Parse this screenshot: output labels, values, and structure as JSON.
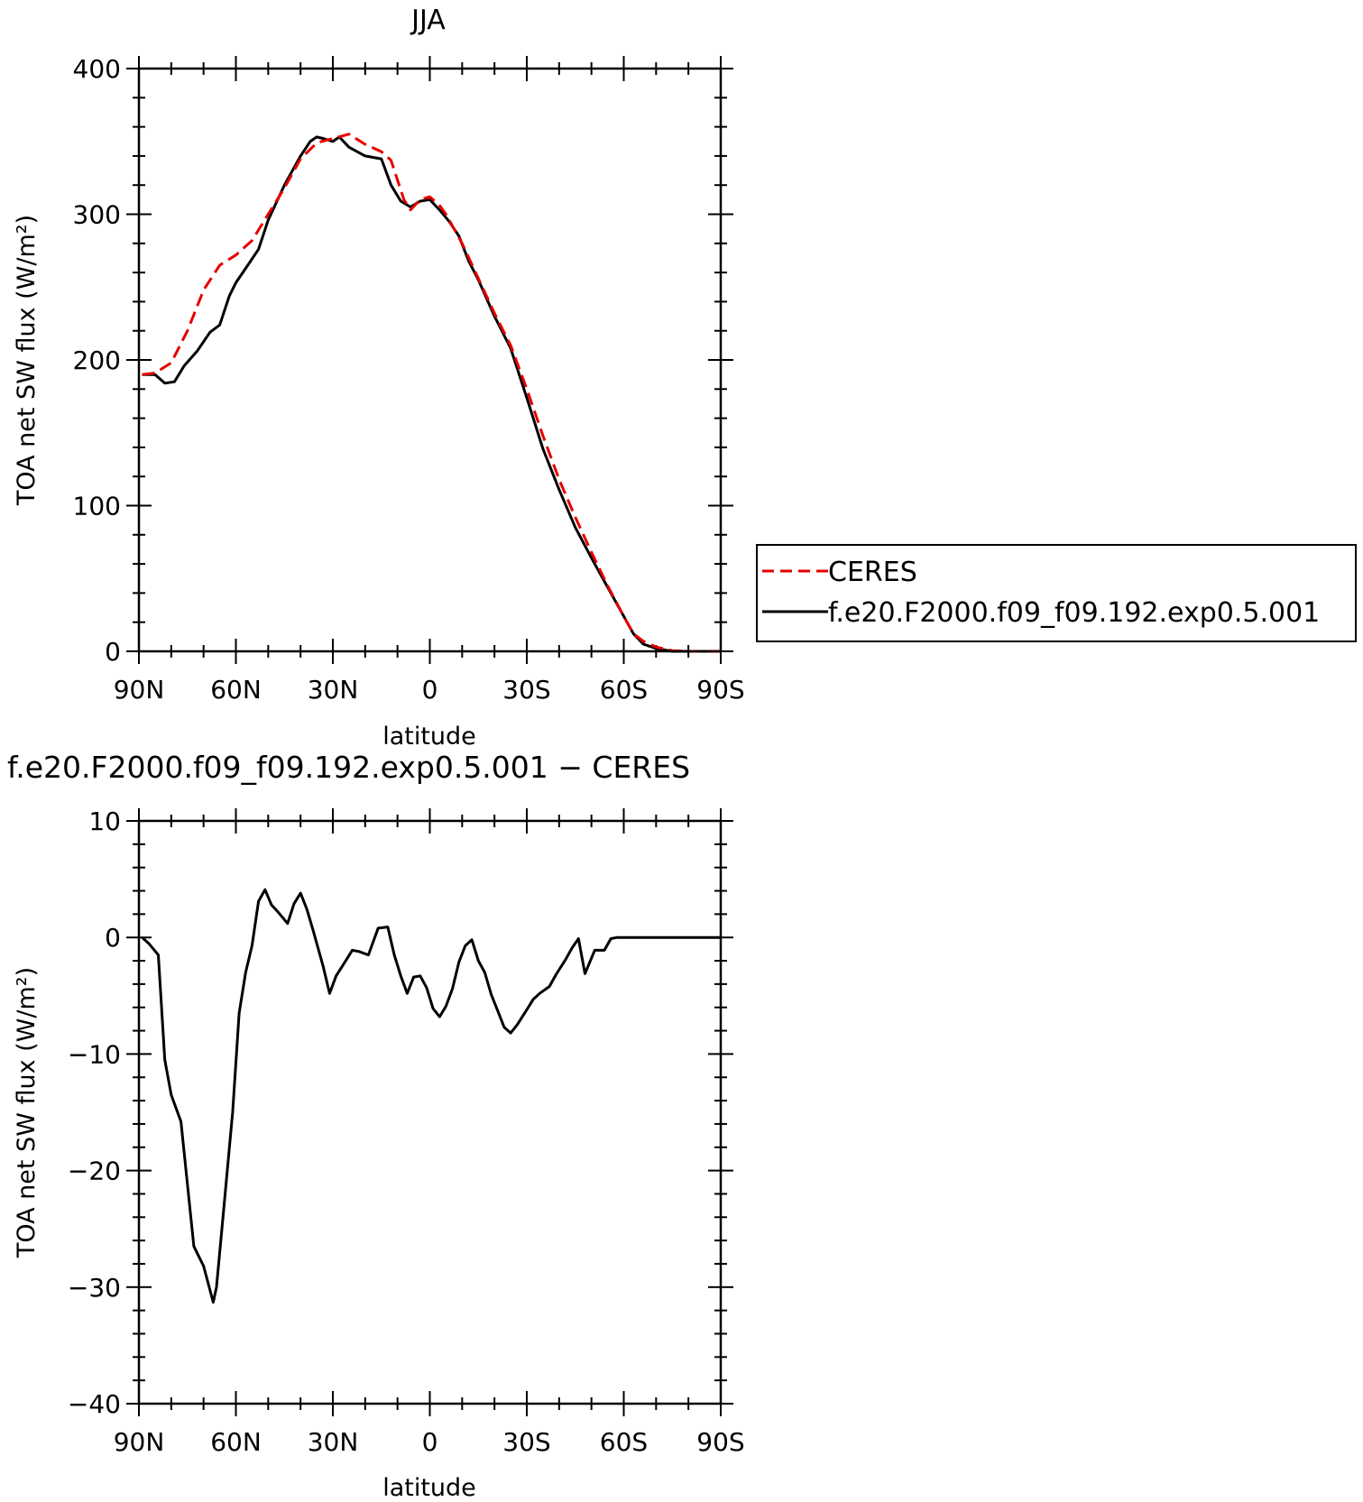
{
  "chart_data": [
    {
      "type": "line",
      "title": "JJA",
      "xlabel": "latitude",
      "ylabel": "TOA net SW flux (W/m²)",
      "x_tick_labels": [
        "90N",
        "60N",
        "30N",
        "0",
        "30S",
        "60S",
        "90S"
      ],
      "x_tick_values": [
        90,
        60,
        30,
        0,
        -30,
        -60,
        -90
      ],
      "xlim": [
        90,
        -90
      ],
      "ylim": [
        0,
        400
      ],
      "y_ticks": [
        0,
        100,
        200,
        300,
        400
      ],
      "y_tick_labels": [
        "0",
        "100",
        "200",
        "300",
        "400"
      ],
      "legend": {
        "placement": "right",
        "entries": [
          "CERES",
          "f.e20.F2000.f09_f09.192.exp0.5.001"
        ]
      },
      "series": [
        {
          "name": "CERES",
          "color": "#e60000",
          "dash": "dashed",
          "x": [
            89,
            85,
            80,
            75,
            70,
            65,
            60,
            55,
            50,
            45,
            40,
            35,
            30,
            25,
            20,
            15,
            12,
            8,
            6,
            3,
            0,
            -3,
            -5,
            -10,
            -15,
            -20,
            -25,
            -30,
            -35,
            -40,
            -45,
            -50,
            -55,
            -60,
            -63,
            -66,
            -70,
            -75,
            -80,
            -85,
            -90
          ],
          "y": [
            190,
            191,
            198,
            220,
            248,
            265,
            272,
            282,
            300,
            318,
            338,
            349,
            352,
            355,
            348,
            343,
            337,
            310,
            303,
            310,
            312,
            306,
            300,
            280,
            256,
            232,
            210,
            180,
            148,
            118,
            92,
            68,
            45,
            24,
            12,
            7,
            3,
            0.5,
            0,
            0,
            0
          ]
        },
        {
          "name": "f.e20.F2000.f09_f09.192.exp0.5.001",
          "color": "#000000",
          "dash": "solid",
          "x": [
            89,
            85,
            82,
            79,
            76,
            72,
            68,
            65,
            62,
            60,
            56,
            53,
            50,
            45,
            40,
            37,
            35,
            33,
            30,
            28,
            25,
            20,
            15,
            12,
            9,
            6,
            3,
            0,
            -3,
            -6,
            -9,
            -12,
            -15,
            -20,
            -25,
            -30,
            -35,
            -40,
            -45,
            -50,
            -55,
            -60,
            -63,
            -66,
            -70,
            -75,
            -80,
            -85,
            -90
          ],
          "y": [
            190,
            190,
            184,
            185,
            196,
            206,
            219,
            224,
            244,
            253,
            266,
            276,
            296,
            320,
            340,
            350,
            353,
            352,
            350,
            353,
            346,
            340,
            338,
            320,
            309,
            305,
            309,
            310,
            303,
            295,
            285,
            268,
            255,
            230,
            208,
            174,
            139,
            111,
            85,
            64,
            44,
            24,
            12,
            5,
            2,
            0,
            0,
            0,
            0
          ]
        }
      ]
    },
    {
      "type": "line",
      "title": "f.e20.F2000.f09_f09.192.exp0.5.001 − CERES",
      "xlabel": "latitude",
      "ylabel": "TOA net SW flux (W/m²)",
      "x_tick_labels": [
        "90N",
        "60N",
        "30N",
        "0",
        "30S",
        "60S",
        "90S"
      ],
      "x_tick_values": [
        90,
        60,
        30,
        0,
        -30,
        -60,
        -90
      ],
      "xlim": [
        90,
        -90
      ],
      "ylim": [
        -40,
        10
      ],
      "y_ticks": [
        -40,
        -30,
        -20,
        -10,
        0,
        10
      ],
      "y_tick_labels": [
        "−40",
        "−30",
        "−20",
        "−10",
        "0",
        "10"
      ],
      "series": [
        {
          "name": "f.e20.F2000.f09_f09.192.exp0.5.001 − CERES",
          "color": "#000000",
          "dash": "solid",
          "x": [
            89,
            87,
            84,
            82,
            80,
            77,
            73,
            70,
            67,
            66,
            64,
            61,
            59,
            57,
            55,
            53,
            51,
            49,
            47,
            44,
            42,
            40,
            38,
            36,
            33,
            31,
            29,
            26,
            24,
            22,
            19,
            16,
            13,
            11,
            9,
            7,
            5,
            3,
            1,
            -1,
            -3,
            -5,
            -7,
            -9,
            -11,
            -13,
            -15,
            -17,
            -19,
            -21,
            -23,
            -25,
            -27,
            -30,
            -32,
            -34,
            -37,
            -39,
            -42,
            -44,
            -46,
            -48,
            -51,
            -54,
            -56,
            -58,
            -60,
            -62,
            -64,
            -66,
            -68,
            -70,
            -72,
            -74,
            -78,
            -82,
            -86,
            -90
          ],
          "y": [
            0,
            -0.5,
            -1.5,
            -10.5,
            -13.5,
            -15.8,
            -26.5,
            -28.2,
            -31.3,
            -30,
            -24,
            -15,
            -6.5,
            -3,
            -0.7,
            3.1,
            4.1,
            2.8,
            2.2,
            1.2,
            2.9,
            3.8,
            2.4,
            0.5,
            -2.5,
            -4.8,
            -3.3,
            -2,
            -1.1,
            -1.2,
            -1.5,
            0.8,
            0.9,
            -1.5,
            -3.3,
            -4.8,
            -3.4,
            -3.3,
            -4.3,
            -6.1,
            -6.8,
            -5.9,
            -4.4,
            -2.1,
            -0.7,
            -0.2,
            -2,
            -3,
            -4.9,
            -6.3,
            -7.7,
            -8.2,
            -7.5,
            -6.2,
            -5.3,
            -4.8,
            -4.2,
            -3.2,
            -1.9,
            -0.9,
            -0.1,
            -3.1,
            -1.1,
            -1.1,
            -0.1,
            0,
            0,
            0,
            0,
            0,
            0,
            0,
            0,
            0,
            0,
            0,
            0,
            0
          ]
        }
      ]
    }
  ]
}
